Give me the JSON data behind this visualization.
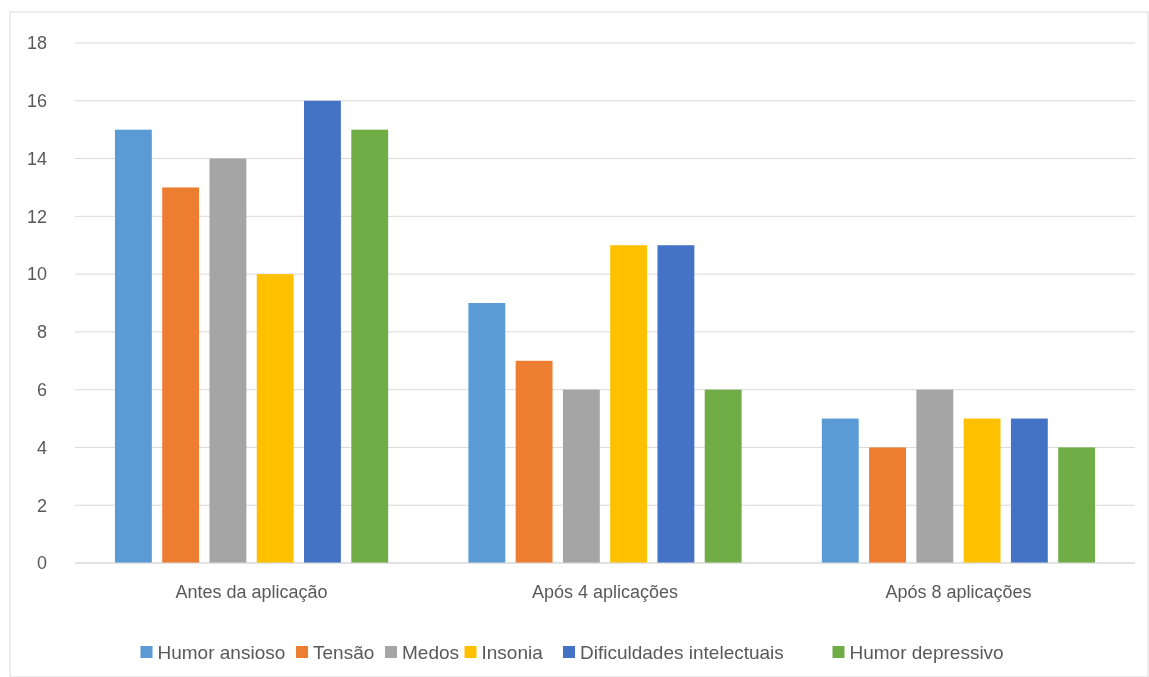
{
  "chart_data": {
    "type": "bar",
    "categories": [
      "Antes da aplicação",
      "Após 4 aplicações",
      "Após 8 aplicações"
    ],
    "series": [
      {
        "name": "Humor ansioso",
        "color": "#5b9bd5",
        "values": [
          15,
          9,
          5
        ]
      },
      {
        "name": "Tensão",
        "color": "#ed7d31",
        "values": [
          13,
          7,
          4
        ]
      },
      {
        "name": "Medos",
        "color": "#a5a5a5",
        "values": [
          14,
          6,
          6
        ]
      },
      {
        "name": "Insonia",
        "color": "#ffc000",
        "values": [
          10,
          11,
          5
        ]
      },
      {
        "name": "Dificuldades intelectuais",
        "color": "#4472c4",
        "values": [
          16,
          11,
          5
        ]
      },
      {
        "name": "Humor depressivo",
        "color": "#70ad47",
        "values": [
          15,
          6,
          4
        ]
      }
    ],
    "ylim": [
      0,
      18
    ],
    "yticks": [
      0,
      2,
      4,
      6,
      8,
      10,
      12,
      14,
      16,
      18
    ],
    "grid": "y",
    "legend": "bottom"
  }
}
